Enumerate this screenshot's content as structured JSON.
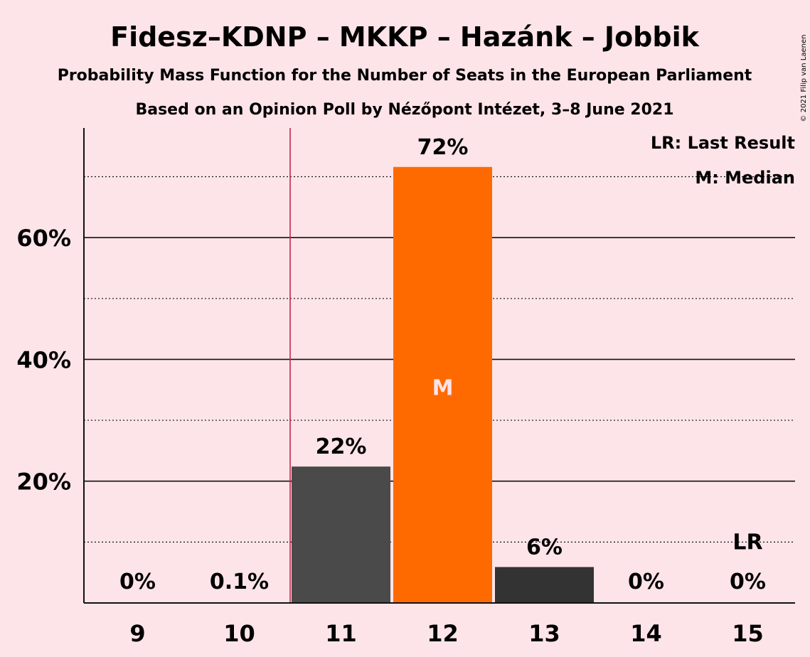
{
  "chart_data": {
    "type": "bar",
    "title": "Fidesz–KDNP – MKKP – Hazánk – Jobbik",
    "subtitle": "Probability Mass Function for the Number of Seats in the European Parliament",
    "subtitle2": "Based on an Opinion Poll by Nézőpont Intézet, 3–8 June 2021",
    "copyright": "© 2021 Filip van Laenen",
    "categories": [
      "9",
      "10",
      "11",
      "12",
      "13",
      "14",
      "15"
    ],
    "values": [
      0,
      0.1,
      22.4,
      71.6,
      5.9,
      0,
      0
    ],
    "data_labels": [
      "0%",
      "0.1%",
      "22%",
      "72%",
      "6%",
      "0%",
      "0%"
    ],
    "ylim": [
      0,
      78
    ],
    "yticks": [
      20,
      40,
      60
    ],
    "ytick_labels": [
      "20%",
      "40%",
      "60%"
    ],
    "minor_gridlines": [
      10,
      30,
      50,
      70
    ],
    "grid": true,
    "median_category": "12",
    "median_marker": "M",
    "last_result_category": "11",
    "last_result_marker_category": "15",
    "last_result_marker": "LR",
    "legend_position": "top-right",
    "legend": [
      "LR: Last Result",
      "M: Median"
    ],
    "colors": {
      "background": "#fce4e8",
      "bar_default": "#4a4a4a",
      "bar_median": "#ff6a00",
      "bar_alt": "#333333",
      "last_result_line": "#c0284e",
      "text": "#111111"
    }
  }
}
